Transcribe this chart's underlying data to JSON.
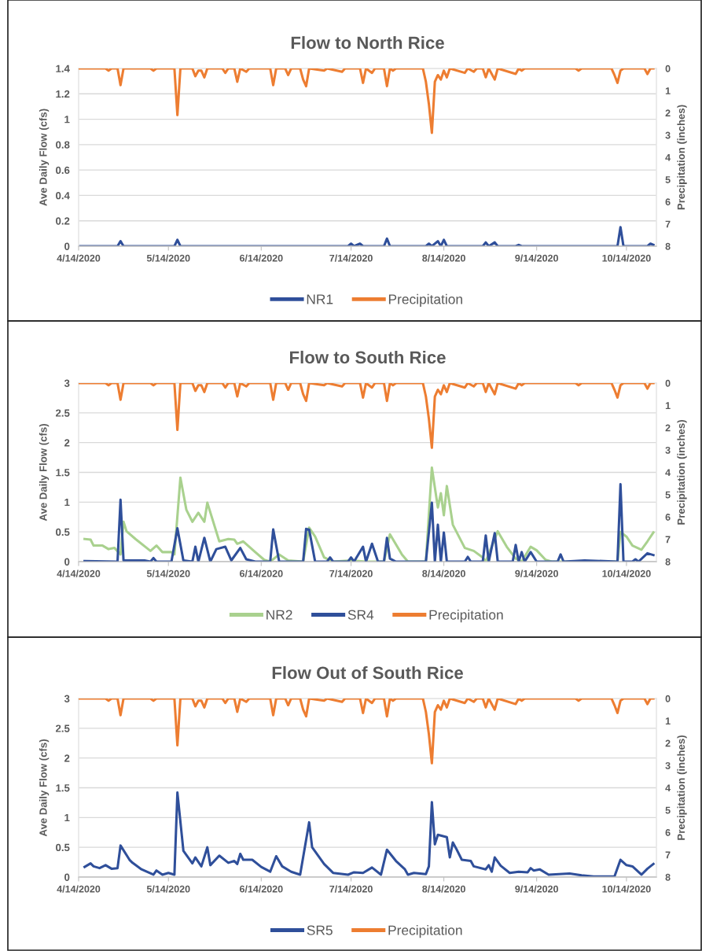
{
  "chart_data": [
    {
      "type": "line",
      "title": "Flow to North Rice",
      "ylabel": "Ave Daily Flow (cfs)",
      "y2label": "Precipitation (inches)",
      "grid": "y",
      "legend": "bottom",
      "xlim": [
        "2020-04-14",
        "2020-10-24"
      ],
      "xticks": [
        {
          "value": "2020-04-14",
          "label": "4/14/2020"
        },
        {
          "value": "2020-05-14",
          "label": "5/14/2020"
        },
        {
          "value": "2020-06-14",
          "label": "6/14/2020"
        },
        {
          "value": "2020-07-14",
          "label": "7/14/2020"
        },
        {
          "value": "2020-08-14",
          "label": "8/14/2020"
        },
        {
          "value": "2020-09-14",
          "label": "9/14/2020"
        },
        {
          "value": "2020-10-14",
          "label": "10/14/2020"
        }
      ],
      "ylim": [
        0,
        1.4
      ],
      "yticks": [
        0,
        0.2,
        0.4,
        0.6,
        0.8,
        1,
        1.2,
        1.4
      ],
      "y2lim": [
        8,
        0
      ],
      "y2ticks": [
        0,
        1,
        2,
        3,
        4,
        5,
        6,
        7,
        8
      ],
      "series": [
        {
          "name": "NR1",
          "color": "#2f4f9a",
          "x": [
            "2020-04-14",
            "2020-04-27",
            "2020-04-28",
            "2020-04-29",
            "2020-05-16",
            "2020-05-17",
            "2020-05-18",
            "2020-07-13",
            "2020-07-14",
            "2020-07-15",
            "2020-07-17",
            "2020-07-18",
            "2020-07-25",
            "2020-07-26",
            "2020-07-27",
            "2020-08-08",
            "2020-08-09",
            "2020-08-10",
            "2020-08-12",
            "2020-08-13",
            "2020-08-14",
            "2020-08-15",
            "2020-08-27",
            "2020-08-28",
            "2020-08-29",
            "2020-08-31",
            "2020-09-01",
            "2020-09-07",
            "2020-09-08",
            "2020-09-09",
            "2020-10-11",
            "2020-10-12",
            "2020-10-13",
            "2020-10-21",
            "2020-10-22",
            "2020-10-23"
          ],
          "values": [
            0,
            0,
            0.04,
            0,
            0,
            0.05,
            0,
            0,
            0.02,
            0,
            0.02,
            0,
            0,
            0.06,
            0,
            0,
            0.02,
            0,
            0.04,
            0,
            0.05,
            0,
            0,
            0.03,
            0,
            0.03,
            0,
            0,
            0.01,
            0,
            0,
            0.15,
            0,
            0,
            0.02,
            0.01
          ]
        },
        {
          "name": "Precipitation",
          "color": "#ed7d31",
          "axis": "y2",
          "x": [
            "2020-04-14",
            "2020-04-23",
            "2020-04-24",
            "2020-04-25",
            "2020-04-27",
            "2020-04-28",
            "2020-04-29",
            "2020-05-08",
            "2020-05-09",
            "2020-05-10",
            "2020-05-16",
            "2020-05-17",
            "2020-05-18",
            "2020-05-22",
            "2020-05-23",
            "2020-05-24",
            "2020-05-25",
            "2020-05-26",
            "2020-05-27",
            "2020-06-01",
            "2020-06-02",
            "2020-06-03",
            "2020-06-05",
            "2020-06-06",
            "2020-06-07",
            "2020-06-09",
            "2020-06-10",
            "2020-06-17",
            "2020-06-18",
            "2020-06-19",
            "2020-06-22",
            "2020-06-23",
            "2020-06-24",
            "2020-06-27",
            "2020-06-28",
            "2020-06-29",
            "2020-06-30",
            "2020-07-05",
            "2020-07-06",
            "2020-07-11",
            "2020-07-12",
            "2020-07-17",
            "2020-07-18",
            "2020-07-19",
            "2020-07-21",
            "2020-07-22",
            "2020-07-25",
            "2020-07-26",
            "2020-07-27",
            "2020-07-28",
            "2020-07-29",
            "2020-08-07",
            "2020-08-08",
            "2020-08-09",
            "2020-08-10",
            "2020-08-11",
            "2020-08-12",
            "2020-08-13",
            "2020-08-14",
            "2020-08-15",
            "2020-08-16",
            "2020-08-21",
            "2020-08-22",
            "2020-08-24",
            "2020-08-25",
            "2020-08-27",
            "2020-08-28",
            "2020-08-29",
            "2020-08-31",
            "2020-09-01",
            "2020-09-07",
            "2020-09-08",
            "2020-09-09",
            "2020-09-10",
            "2020-09-27",
            "2020-09-28",
            "2020-09-29",
            "2020-10-09",
            "2020-10-10",
            "2020-10-11",
            "2020-10-12",
            "2020-10-13",
            "2020-10-20",
            "2020-10-21",
            "2020-10-22",
            "2020-10-23"
          ],
          "values": [
            0,
            0,
            0.1,
            0,
            0,
            0.75,
            0,
            0,
            0.1,
            0,
            0,
            2.1,
            0,
            0,
            0.35,
            0.1,
            0.1,
            0.4,
            0,
            0,
            0.2,
            0,
            0,
            0.6,
            0,
            0.15,
            0,
            0,
            0.75,
            0,
            0,
            0.3,
            0,
            0,
            0.5,
            0.8,
            0,
            0.1,
            0,
            0.15,
            0,
            0,
            0.65,
            0,
            0.2,
            0,
            0,
            0.8,
            0,
            0.1,
            0,
            0,
            0.6,
            1.6,
            2.9,
            0.6,
            0.3,
            0.5,
            0.1,
            0.4,
            0,
            0.2,
            0,
            0.15,
            0,
            0,
            0.4,
            0,
            0.5,
            0,
            0.25,
            0,
            0.1,
            0,
            0,
            0.1,
            0,
            0,
            0.3,
            0.65,
            0.1,
            0,
            0,
            0.25,
            0,
            0
          ]
        }
      ]
    },
    {
      "type": "line",
      "title": "Flow to South Rice",
      "ylabel": "Ave Daily Flow (cfs)",
      "y2label": "Precipitation (inches)",
      "grid": "y",
      "legend": "bottom",
      "xlim": [
        "2020-04-14",
        "2020-10-24"
      ],
      "xticks": [
        {
          "value": "2020-04-14",
          "label": "4/14/2020"
        },
        {
          "value": "2020-05-14",
          "label": "5/14/2020"
        },
        {
          "value": "2020-06-14",
          "label": "6/14/2020"
        },
        {
          "value": "2020-07-14",
          "label": "7/14/2020"
        },
        {
          "value": "2020-08-14",
          "label": "8/14/2020"
        },
        {
          "value": "2020-09-14",
          "label": "9/14/2020"
        },
        {
          "value": "2020-10-14",
          "label": "10/14/2020"
        }
      ],
      "ylim": [
        0,
        3
      ],
      "yticks": [
        0,
        0.5,
        1,
        1.5,
        2,
        2.5,
        3
      ],
      "y2lim": [
        8,
        0
      ],
      "y2ticks": [
        0,
        1,
        2,
        3,
        4,
        5,
        6,
        7,
        8
      ],
      "series": [
        {
          "name": "NR2",
          "color": "#a9d18e",
          "x": [
            "2020-04-16",
            "2020-04-18",
            "2020-04-19",
            "2020-04-22",
            "2020-04-24",
            "2020-04-26",
            "2020-04-28",
            "2020-04-29",
            "2020-04-30",
            "2020-05-03",
            "2020-05-08",
            "2020-05-10",
            "2020-05-12",
            "2020-05-15",
            "2020-05-16",
            "2020-05-18",
            "2020-05-20",
            "2020-05-22",
            "2020-05-24",
            "2020-05-26",
            "2020-05-27",
            "2020-05-31",
            "2020-06-03",
            "2020-06-05",
            "2020-06-06",
            "2020-06-08",
            "2020-06-12",
            "2020-06-15",
            "2020-06-17",
            "2020-06-20",
            "2020-06-23",
            "2020-06-28",
            "2020-06-30",
            "2020-07-02",
            "2020-07-05",
            "2020-07-08",
            "2020-07-14",
            "2020-07-19",
            "2020-07-25",
            "2020-07-27",
            "2020-07-31",
            "2020-08-02",
            "2020-08-08",
            "2020-08-10",
            "2020-08-12",
            "2020-08-13",
            "2020-08-14",
            "2020-08-15",
            "2020-08-17",
            "2020-08-21",
            "2020-08-24",
            "2020-08-27",
            "2020-08-28",
            "2020-09-01",
            "2020-09-04",
            "2020-09-07",
            "2020-09-09",
            "2020-09-12",
            "2020-09-14",
            "2020-09-17",
            "2020-09-19",
            "2020-10-11",
            "2020-10-12",
            "2020-10-14",
            "2020-10-16",
            "2020-10-19",
            "2020-10-21",
            "2020-10-23"
          ],
          "values": [
            0.38,
            0.37,
            0.27,
            0.27,
            0.21,
            0.23,
            0.12,
            0.67,
            0.51,
            0.38,
            0.18,
            0.27,
            0.16,
            0.16,
            0.12,
            1.41,
            0.87,
            0.67,
            0.82,
            0.67,
            0.99,
            0.34,
            0.38,
            0.37,
            0.3,
            0.34,
            0.16,
            0.03,
            0,
            0.12,
            0.02,
            0,
            0.57,
            0.42,
            0.07,
            0,
            0.02,
            0,
            0,
            0.46,
            0.12,
            0,
            0,
            1.58,
            0.91,
            1.15,
            0.78,
            1.27,
            0.62,
            0.23,
            0.18,
            0.07,
            0,
            0.51,
            0.25,
            0.05,
            0,
            0.25,
            0.19,
            0.03,
            0,
            0,
            0.5,
            0.42,
            0.27,
            0.2,
            0.34,
            0.49
          ]
        },
        {
          "name": "SR4",
          "color": "#2f4f9a",
          "x": [
            "2020-04-16",
            "2020-04-27",
            "2020-04-28",
            "2020-04-29",
            "2020-05-06",
            "2020-05-08",
            "2020-05-09",
            "2020-05-10",
            "2020-05-15",
            "2020-05-17",
            "2020-05-19",
            "2020-05-22",
            "2020-05-23",
            "2020-05-24",
            "2020-05-26",
            "2020-05-28",
            "2020-05-30",
            "2020-06-02",
            "2020-06-04",
            "2020-06-07",
            "2020-06-09",
            "2020-06-12",
            "2020-06-17",
            "2020-06-18",
            "2020-06-20",
            "2020-06-28",
            "2020-06-29",
            "2020-06-30",
            "2020-07-02",
            "2020-07-06",
            "2020-07-07",
            "2020-07-08",
            "2020-07-13",
            "2020-07-14",
            "2020-07-15",
            "2020-07-18",
            "2020-07-19",
            "2020-07-21",
            "2020-07-23",
            "2020-07-25",
            "2020-07-26",
            "2020-07-27",
            "2020-07-29",
            "2020-08-08",
            "2020-08-10",
            "2020-08-11",
            "2020-08-12",
            "2020-08-13",
            "2020-08-14",
            "2020-08-15",
            "2020-08-21",
            "2020-08-22",
            "2020-08-23",
            "2020-08-27",
            "2020-08-28",
            "2020-08-29",
            "2020-08-31",
            "2020-09-01",
            "2020-09-06",
            "2020-09-07",
            "2020-09-08",
            "2020-09-09",
            "2020-09-10",
            "2020-09-12",
            "2020-09-14",
            "2020-09-21",
            "2020-09-22",
            "2020-09-23",
            "2020-09-30",
            "2020-10-11",
            "2020-10-12",
            "2020-10-13",
            "2020-10-16",
            "2020-10-17",
            "2020-10-18",
            "2020-10-21",
            "2020-10-23"
          ],
          "values": [
            0.01,
            0,
            1.04,
            0.02,
            0.02,
            0,
            0.06,
            0,
            0,
            0.56,
            0.02,
            0,
            0.25,
            0,
            0.4,
            0,
            0.21,
            0.25,
            0.02,
            0.23,
            0.04,
            0,
            0,
            0.54,
            0,
            0,
            0.55,
            0.54,
            0,
            0,
            0.07,
            0,
            0,
            0.07,
            0,
            0.25,
            0,
            0.3,
            0,
            0,
            0.4,
            0.05,
            0,
            0,
            0.99,
            0,
            0.62,
            0,
            0.49,
            0,
            0,
            0.08,
            0,
            0,
            0.44,
            0,
            0.48,
            0,
            0,
            0.28,
            0,
            0.16,
            0,
            0.16,
            0,
            0,
            0.12,
            0,
            0.02,
            0,
            1.3,
            0,
            0,
            0.04,
            0,
            0.14,
            0.11
          ]
        },
        {
          "name": "Precipitation",
          "color": "#ed7d31",
          "axis": "y2",
          "x": [
            "2020-04-14",
            "2020-04-23",
            "2020-04-24",
            "2020-04-25",
            "2020-04-27",
            "2020-04-28",
            "2020-04-29",
            "2020-05-08",
            "2020-05-09",
            "2020-05-10",
            "2020-05-16",
            "2020-05-17",
            "2020-05-18",
            "2020-05-22",
            "2020-05-23",
            "2020-05-24",
            "2020-05-25",
            "2020-05-26",
            "2020-05-27",
            "2020-06-01",
            "2020-06-02",
            "2020-06-03",
            "2020-06-05",
            "2020-06-06",
            "2020-06-07",
            "2020-06-09",
            "2020-06-10",
            "2020-06-17",
            "2020-06-18",
            "2020-06-19",
            "2020-06-22",
            "2020-06-23",
            "2020-06-24",
            "2020-06-27",
            "2020-06-28",
            "2020-06-29",
            "2020-06-30",
            "2020-07-05",
            "2020-07-06",
            "2020-07-11",
            "2020-07-12",
            "2020-07-17",
            "2020-07-18",
            "2020-07-19",
            "2020-07-21",
            "2020-07-22",
            "2020-07-25",
            "2020-07-26",
            "2020-07-27",
            "2020-07-28",
            "2020-07-29",
            "2020-08-07",
            "2020-08-08",
            "2020-08-09",
            "2020-08-10",
            "2020-08-11",
            "2020-08-12",
            "2020-08-13",
            "2020-08-14",
            "2020-08-15",
            "2020-08-16",
            "2020-08-21",
            "2020-08-22",
            "2020-08-24",
            "2020-08-25",
            "2020-08-27",
            "2020-08-28",
            "2020-08-29",
            "2020-08-31",
            "2020-09-01",
            "2020-09-07",
            "2020-09-08",
            "2020-09-09",
            "2020-09-10",
            "2020-09-27",
            "2020-09-28",
            "2020-09-29",
            "2020-10-09",
            "2020-10-10",
            "2020-10-11",
            "2020-10-12",
            "2020-10-13",
            "2020-10-20",
            "2020-10-21",
            "2020-10-22",
            "2020-10-23"
          ],
          "values": [
            0,
            0,
            0.1,
            0,
            0,
            0.75,
            0,
            0,
            0.1,
            0,
            0,
            2.1,
            0,
            0,
            0.35,
            0.1,
            0.1,
            0.4,
            0,
            0,
            0.2,
            0,
            0,
            0.6,
            0,
            0.15,
            0,
            0,
            0.75,
            0,
            0,
            0.3,
            0,
            0,
            0.5,
            0.8,
            0,
            0.1,
            0,
            0.15,
            0,
            0,
            0.65,
            0,
            0.2,
            0,
            0,
            0.8,
            0,
            0.1,
            0,
            0,
            0.6,
            1.6,
            2.9,
            0.6,
            0.3,
            0.5,
            0.1,
            0.4,
            0,
            0.2,
            0,
            0.15,
            0,
            0,
            0.4,
            0,
            0.5,
            0,
            0.25,
            0,
            0.1,
            0,
            0,
            0.1,
            0,
            0,
            0.3,
            0.65,
            0.1,
            0,
            0,
            0.25,
            0,
            0
          ]
        }
      ]
    },
    {
      "type": "line",
      "title": "Flow Out of South Rice",
      "ylabel": "Ave Daily Flow (cfs)",
      "y2label": "Precipitation (inches)",
      "grid": "y",
      "legend": "bottom",
      "xlim": [
        "2020-04-14",
        "2020-10-24"
      ],
      "xticks": [
        {
          "value": "2020-04-14",
          "label": "4/14/2020"
        },
        {
          "value": "2020-05-14",
          "label": "5/14/2020"
        },
        {
          "value": "2020-06-14",
          "label": "6/14/2020"
        },
        {
          "value": "2020-07-14",
          "label": "7/14/2020"
        },
        {
          "value": "2020-08-14",
          "label": "8/14/2020"
        },
        {
          "value": "2020-09-14",
          "label": "9/14/2020"
        },
        {
          "value": "2020-10-14",
          "label": "10/14/2020"
        }
      ],
      "ylim": [
        0,
        3
      ],
      "yticks": [
        0,
        0.5,
        1,
        1.5,
        2,
        2.5,
        3
      ],
      "y2lim": [
        8,
        0
      ],
      "y2ticks": [
        0,
        1,
        2,
        3,
        4,
        5,
        6,
        7,
        8
      ],
      "series": [
        {
          "name": "SR5",
          "color": "#2f4f9a",
          "x": [
            "2020-04-16",
            "2020-04-18",
            "2020-04-19",
            "2020-04-21",
            "2020-04-23",
            "2020-04-25",
            "2020-04-27",
            "2020-04-28",
            "2020-05-01",
            "2020-05-02",
            "2020-05-05",
            "2020-05-09",
            "2020-05-10",
            "2020-05-12",
            "2020-05-14",
            "2020-05-16",
            "2020-05-17",
            "2020-05-19",
            "2020-05-22",
            "2020-05-23",
            "2020-05-25",
            "2020-05-27",
            "2020-05-28",
            "2020-05-31",
            "2020-06-03",
            "2020-06-05",
            "2020-06-06",
            "2020-06-07",
            "2020-06-08",
            "2020-06-11",
            "2020-06-14",
            "2020-06-17",
            "2020-06-19",
            "2020-06-21",
            "2020-06-24",
            "2020-06-27",
            "2020-06-30",
            "2020-07-01",
            "2020-07-05",
            "2020-07-08",
            "2020-07-13",
            "2020-07-15",
            "2020-07-18",
            "2020-07-21",
            "2020-07-24",
            "2020-07-26",
            "2020-07-29",
            "2020-08-01",
            "2020-08-02",
            "2020-08-04",
            "2020-08-08",
            "2020-08-09",
            "2020-08-10",
            "2020-08-11",
            "2020-08-12",
            "2020-08-15",
            "2020-08-16",
            "2020-08-17",
            "2020-08-18",
            "2020-08-20",
            "2020-08-23",
            "2020-08-24",
            "2020-08-28",
            "2020-08-29",
            "2020-08-30",
            "2020-08-31",
            "2020-09-02",
            "2020-09-05",
            "2020-09-08",
            "2020-09-11",
            "2020-09-12",
            "2020-09-13",
            "2020-09-15",
            "2020-09-18",
            "2020-09-25",
            "2020-09-29",
            "2020-10-03",
            "2020-10-10",
            "2020-10-12",
            "2020-10-14",
            "2020-10-16",
            "2020-10-19",
            "2020-10-21",
            "2020-10-23"
          ],
          "values": [
            0.17,
            0.23,
            0.18,
            0.15,
            0.2,
            0.14,
            0.15,
            0.53,
            0.29,
            0.24,
            0.13,
            0.04,
            0.11,
            0.04,
            0.07,
            0.04,
            1.42,
            0.44,
            0.23,
            0.33,
            0.18,
            0.5,
            0.2,
            0.36,
            0.24,
            0.27,
            0.22,
            0.39,
            0.29,
            0.29,
            0.17,
            0.09,
            0.35,
            0.18,
            0.09,
            0.04,
            0.92,
            0.5,
            0.22,
            0.07,
            0.04,
            0.08,
            0.07,
            0.16,
            0.04,
            0.46,
            0.27,
            0.13,
            0.04,
            0.07,
            0.05,
            0.18,
            1.26,
            0.55,
            0.71,
            0.67,
            0.33,
            0.58,
            0.49,
            0.29,
            0.27,
            0.18,
            0.13,
            0.2,
            0.09,
            0.33,
            0.19,
            0.07,
            0.09,
            0.08,
            0.15,
            0.11,
            0.13,
            0.04,
            0.06,
            0.03,
            0.01,
            0.01,
            0.29,
            0.2,
            0.18,
            0.04,
            0.14,
            0.22
          ]
        },
        {
          "name": "Precipitation",
          "color": "#ed7d31",
          "axis": "y2",
          "x": [
            "2020-04-14",
            "2020-04-23",
            "2020-04-24",
            "2020-04-25",
            "2020-04-27",
            "2020-04-28",
            "2020-04-29",
            "2020-05-08",
            "2020-05-09",
            "2020-05-10",
            "2020-05-16",
            "2020-05-17",
            "2020-05-18",
            "2020-05-22",
            "2020-05-23",
            "2020-05-24",
            "2020-05-25",
            "2020-05-26",
            "2020-05-27",
            "2020-06-01",
            "2020-06-02",
            "2020-06-03",
            "2020-06-05",
            "2020-06-06",
            "2020-06-07",
            "2020-06-09",
            "2020-06-10",
            "2020-06-17",
            "2020-06-18",
            "2020-06-19",
            "2020-06-22",
            "2020-06-23",
            "2020-06-24",
            "2020-06-27",
            "2020-06-28",
            "2020-06-29",
            "2020-06-30",
            "2020-07-05",
            "2020-07-06",
            "2020-07-11",
            "2020-07-12",
            "2020-07-17",
            "2020-07-18",
            "2020-07-19",
            "2020-07-21",
            "2020-07-22",
            "2020-07-25",
            "2020-07-26",
            "2020-07-27",
            "2020-07-28",
            "2020-07-29",
            "2020-08-07",
            "2020-08-08",
            "2020-08-09",
            "2020-08-10",
            "2020-08-11",
            "2020-08-12",
            "2020-08-13",
            "2020-08-14",
            "2020-08-15",
            "2020-08-16",
            "2020-08-21",
            "2020-08-22",
            "2020-08-24",
            "2020-08-25",
            "2020-08-27",
            "2020-08-28",
            "2020-08-29",
            "2020-08-31",
            "2020-09-01",
            "2020-09-07",
            "2020-09-08",
            "2020-09-09",
            "2020-09-10",
            "2020-09-27",
            "2020-09-28",
            "2020-09-29",
            "2020-10-09",
            "2020-10-10",
            "2020-10-11",
            "2020-10-12",
            "2020-10-13",
            "2020-10-20",
            "2020-10-21",
            "2020-10-22",
            "2020-10-23"
          ],
          "values": [
            0,
            0,
            0.1,
            0,
            0,
            0.75,
            0,
            0,
            0.1,
            0,
            0,
            2.1,
            0,
            0,
            0.35,
            0.1,
            0.1,
            0.4,
            0,
            0,
            0.2,
            0,
            0,
            0.6,
            0,
            0.15,
            0,
            0,
            0.75,
            0,
            0,
            0.3,
            0,
            0,
            0.5,
            0.8,
            0,
            0.1,
            0,
            0.15,
            0,
            0,
            0.65,
            0,
            0.2,
            0,
            0,
            0.8,
            0,
            0.1,
            0,
            0,
            0.6,
            1.6,
            2.9,
            0.6,
            0.3,
            0.5,
            0.1,
            0.4,
            0,
            0.2,
            0,
            0.15,
            0,
            0,
            0.4,
            0,
            0.5,
            0,
            0.25,
            0,
            0.1,
            0,
            0,
            0.1,
            0,
            0,
            0.3,
            0.65,
            0.1,
            0,
            0,
            0.25,
            0,
            0
          ]
        }
      ]
    }
  ]
}
